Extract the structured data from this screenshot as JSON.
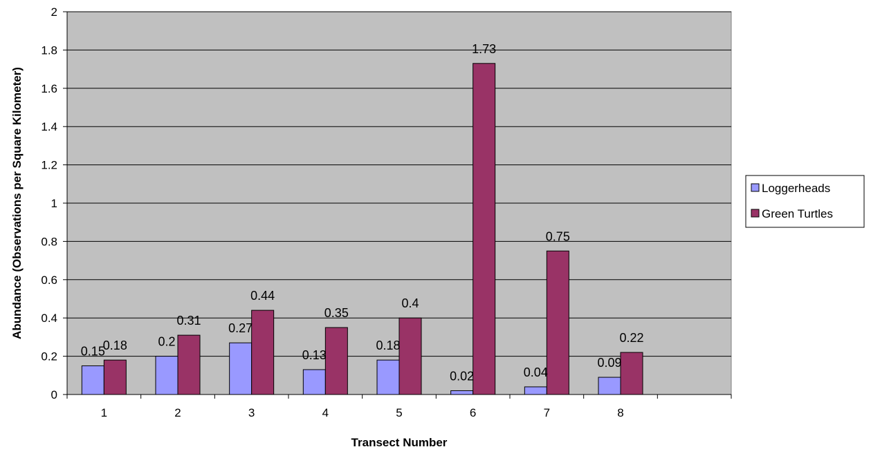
{
  "chart_data": {
    "type": "bar",
    "categories": [
      "1",
      "2",
      "3",
      "4",
      "5",
      "6",
      "7",
      "8",
      ""
    ],
    "series": [
      {
        "name": "Loggerheads",
        "color": "#9999ff",
        "values": [
          0.15,
          0.2,
          0.27,
          0.13,
          0.18,
          0.02,
          0.04,
          0.09,
          null
        ],
        "labels": [
          "0.15",
          "0.2",
          "0.27",
          "0.13",
          "0.18",
          "0.02",
          "0.04",
          "0.09",
          ""
        ]
      },
      {
        "name": "Green Turtles",
        "color": "#993366",
        "values": [
          0.18,
          0.31,
          0.44,
          0.35,
          0.4,
          1.73,
          0.75,
          0.22,
          null
        ],
        "labels": [
          "0.18",
          "0.31",
          "0.44",
          "0.35",
          "0.4",
          "1.73",
          "0.75",
          "0.22",
          ""
        ]
      }
    ],
    "xlabel": "Transect Number",
    "ylabel": "Abundance (Observations per Square Kilometer)",
    "ylim": [
      0,
      2
    ],
    "yticks": [
      "0",
      "0.2",
      "0.4",
      "0.6",
      "0.8",
      "1",
      "1.2",
      "1.4",
      "1.6",
      "1.8",
      "2"
    ],
    "plot_background": "#c0c0c0",
    "grid": true,
    "legend_position": "right"
  }
}
